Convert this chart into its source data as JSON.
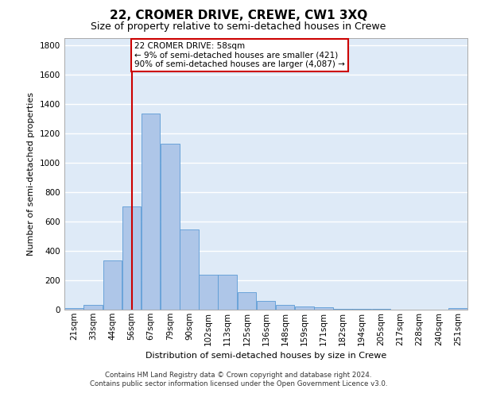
{
  "title_line1": "22, CROMER DRIVE, CREWE, CW1 3XQ",
  "title_line2": "Size of property relative to semi-detached houses in Crewe",
  "xlabel": "Distribution of semi-detached houses by size in Crewe",
  "ylabel": "Number of semi-detached properties",
  "bar_color": "#aec6e8",
  "bar_edge_color": "#5b9bd5",
  "background_color": "#deeaf7",
  "grid_color": "#ffffff",
  "vline_color": "#cc0000",
  "vline_x": 3,
  "categories": [
    "21sqm",
    "33sqm",
    "44sqm",
    "56sqm",
    "67sqm",
    "79sqm",
    "90sqm",
    "102sqm",
    "113sqm",
    "125sqm",
    "136sqm",
    "148sqm",
    "159sqm",
    "171sqm",
    "182sqm",
    "194sqm",
    "205sqm",
    "217sqm",
    "228sqm",
    "240sqm",
    "251sqm"
  ],
  "values": [
    10,
    30,
    335,
    700,
    1335,
    1130,
    545,
    240,
    240,
    120,
    60,
    35,
    20,
    15,
    8,
    5,
    3,
    2,
    2,
    1,
    10
  ],
  "ylim": [
    0,
    1850
  ],
  "yticks": [
    0,
    200,
    400,
    600,
    800,
    1000,
    1200,
    1400,
    1600,
    1800
  ],
  "annotation_text": "22 CROMER DRIVE: 58sqm\n← 9% of semi-detached houses are smaller (421)\n90% of semi-detached houses are larger (4,087) →",
  "annotation_box_color": "#ffffff",
  "annotation_box_edge_color": "#cc0000",
  "footer_line1": "Contains HM Land Registry data © Crown copyright and database right 2024.",
  "footer_line2": "Contains public sector information licensed under the Open Government Licence v3.0.",
  "title_fontsize": 11,
  "subtitle_fontsize": 9,
  "label_fontsize": 8,
  "tick_fontsize": 7.5,
  "annotation_fontsize": 7.5,
  "footer_fontsize": 6.2
}
